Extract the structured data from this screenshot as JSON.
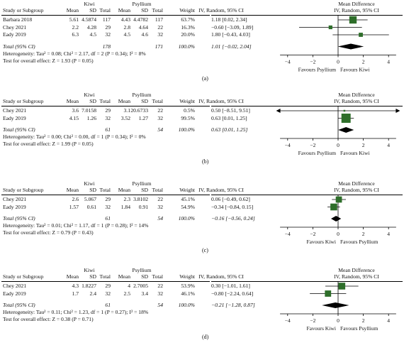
{
  "headers": {
    "study": "Study or Subgroup",
    "mean": "Mean",
    "sd": "SD",
    "total": "Total",
    "weight": "Weight",
    "md_title": "Mean Difference",
    "md_sub": "IV, Random, 95% CI"
  },
  "chart_data": [
    {
      "type": "forest",
      "caption": "(a)",
      "group1": "Kiwi",
      "group2": "Psyllium",
      "studies": [
        {
          "name": "Barbara 2018",
          "m1": "5.61",
          "sd1": "4.5874",
          "n1": "117",
          "m2": "4.43",
          "sd2": "4.4782",
          "n2": "117",
          "weight": "63.7%",
          "ci": "1.18 [0.02, 2.34]",
          "est": 1.18,
          "lo": 0.02,
          "hi": 2.34,
          "w": 63.7
        },
        {
          "name": "Chey 2021",
          "m1": "2.2",
          "sd1": "4.28",
          "n1": "29",
          "m2": "2.8",
          "sd2": "4.64",
          "n2": "22",
          "weight": "16.3%",
          "ci": "−0.60 [−3.09, 1.89]",
          "est": -0.6,
          "lo": -3.09,
          "hi": 1.89,
          "w": 16.3
        },
        {
          "name": "Eady 2019",
          "m1": "6.3",
          "sd1": "4.5",
          "n1": "32",
          "m2": "4.5",
          "sd2": "4.6",
          "n2": "32",
          "weight": "20.0%",
          "ci": "1.80 [−0.43, 4.03]",
          "est": 1.8,
          "lo": -0.43,
          "hi": 4.03,
          "w": 20.0
        }
      ],
      "total": {
        "label": "Total (95% CI)",
        "n1": "178",
        "n2": "171",
        "weight": "100.0%",
        "ci": "1.01 [−0.02, 2.04]",
        "est": 1.01,
        "lo": -0.02,
        "hi": 2.04
      },
      "heterogeneity": "Heterogeneity: Tau² = 0.08; Chi² = 2.17, df = 2 (P = 0.34); I² = 8%",
      "overall": "Test for overall effect: Z = 1.93 (P = 0.05)",
      "xlim": [
        -5,
        5
      ],
      "ticks": [
        -4,
        -2,
        0,
        2,
        4
      ],
      "favours_left": "Favours Psyllium",
      "favours_right": "Favours Kiwi"
    },
    {
      "type": "forest",
      "caption": "(b)",
      "group1": "Kiwi",
      "group2": "Psyllium",
      "studies": [
        {
          "name": "Chey 2021",
          "m1": "3.6",
          "sd1": "7.0158",
          "n1": "29",
          "m2": "3.1",
          "sd2": "20.6733",
          "n2": "22",
          "weight": "0.5%",
          "ci": "0.50 [−8.51, 9.51]",
          "est": 0.5,
          "lo": -8.51,
          "hi": 9.51,
          "w": 0.5
        },
        {
          "name": "Eady 2019",
          "m1": "4.15",
          "sd1": "1.26",
          "n1": "32",
          "m2": "3.52",
          "sd2": "1.27",
          "n2": "32",
          "weight": "99.5%",
          "ci": "0.63 [0.01, 1.25]",
          "est": 0.63,
          "lo": 0.01,
          "hi": 1.25,
          "w": 99.5
        }
      ],
      "total": {
        "label": "Total (95% CI)",
        "n1": "61",
        "n2": "54",
        "weight": "100.0%",
        "ci": "0.63 [0.01, 1.25]",
        "est": 0.63,
        "lo": 0.01,
        "hi": 1.25
      },
      "heterogeneity": "Heterogeneity: Tau² = 0.00; Chi² = 0.00, df = 1 (P = 0.34); I² = 0%",
      "overall": "Test for overall effect: Z = 1.99 (P = 0.05)",
      "xlim": [
        -5,
        5
      ],
      "ticks": [
        -4,
        -2,
        0,
        2,
        4
      ],
      "favours_left": "Favours Psyllium",
      "favours_right": "Favours Kiwi"
    },
    {
      "type": "forest",
      "caption": "(c)",
      "group1": "Kiwi",
      "group2": "Psyllium",
      "studies": [
        {
          "name": "Chey 2021",
          "m1": "2.6",
          "sd1": "5.067",
          "n1": "29",
          "m2": "2.3",
          "sd2": "3.8102",
          "n2": "22",
          "weight": "45.1%",
          "ci": "0.06 [−0.49, 0.62]",
          "est": 0.06,
          "lo": -0.49,
          "hi": 0.62,
          "w": 45.1
        },
        {
          "name": "Eady 2019",
          "m1": "1.57",
          "sd1": "0.61",
          "n1": "32",
          "m2": "1.84",
          "sd2": "0.91",
          "n2": "32",
          "weight": "54.9%",
          "ci": "−0.34 [−0.84, 0.15]",
          "est": -0.34,
          "lo": -0.84,
          "hi": 0.15,
          "w": 54.9
        }
      ],
      "total": {
        "label": "Total (95% CI)",
        "n1": "61",
        "n2": "54",
        "weight": "100.0%",
        "ci": "−0.16 [−0.56, 0.24]",
        "est": -0.16,
        "lo": -0.56,
        "hi": 0.24
      },
      "heterogeneity": "Heterogeneity: Tau² = 0.01; Chi² = 1.17, df = 1 (P = 0.28); I² = 14%",
      "overall": "Test for overall effect: Z = 0.79 (P = 0.43)",
      "xlim": [
        -5,
        5
      ],
      "ticks": [
        -4,
        -2,
        0,
        2,
        4
      ],
      "favours_left": "Favours Kiwi",
      "favours_right": "Favours Psyllium"
    },
    {
      "type": "forest",
      "caption": "(d)",
      "group1": "Kiwi",
      "group2": "Psyllium",
      "studies": [
        {
          "name": "Chey 2021",
          "m1": "4.3",
          "sd1": "1.8227",
          "n1": "29",
          "m2": "4",
          "sd2": "2.7005",
          "n2": "22",
          "weight": "53.9%",
          "ci": "0.30 [−1.01, 1.61]",
          "est": 0.3,
          "lo": -1.01,
          "hi": 1.61,
          "w": 53.9
        },
        {
          "name": "Eady 2019",
          "m1": "1.7",
          "sd1": "2.4",
          "n1": "32",
          "m2": "2.5",
          "sd2": "3.4",
          "n2": "32",
          "weight": "46.1%",
          "ci": "−0.80 [−2.24, 0.64]",
          "est": -0.8,
          "lo": -2.24,
          "hi": 0.64,
          "w": 46.1
        }
      ],
      "total": {
        "label": "Total (95% CI)",
        "n1": "61",
        "n2": "54",
        "weight": "100.0%",
        "ci": "−0.21 [−1.28, 0.87]",
        "est": -0.21,
        "lo": -1.28,
        "hi": 0.87
      },
      "heterogeneity": "Heterogeneity: Tau² = 0.11; Chi² = 1.23, df = 1 (P = 0.27); I² = 18%",
      "overall": "Test for overall effect: Z = 0.38 (P = 0.71)",
      "xlim": [
        -5,
        5
      ],
      "ticks": [
        -4,
        -2,
        0,
        2,
        4
      ],
      "favours_left": "Favours Kiwi",
      "favours_right": "Favours Psyllium"
    }
  ],
  "colors": {
    "marker": "#2e6e2a",
    "line": "#000000"
  }
}
